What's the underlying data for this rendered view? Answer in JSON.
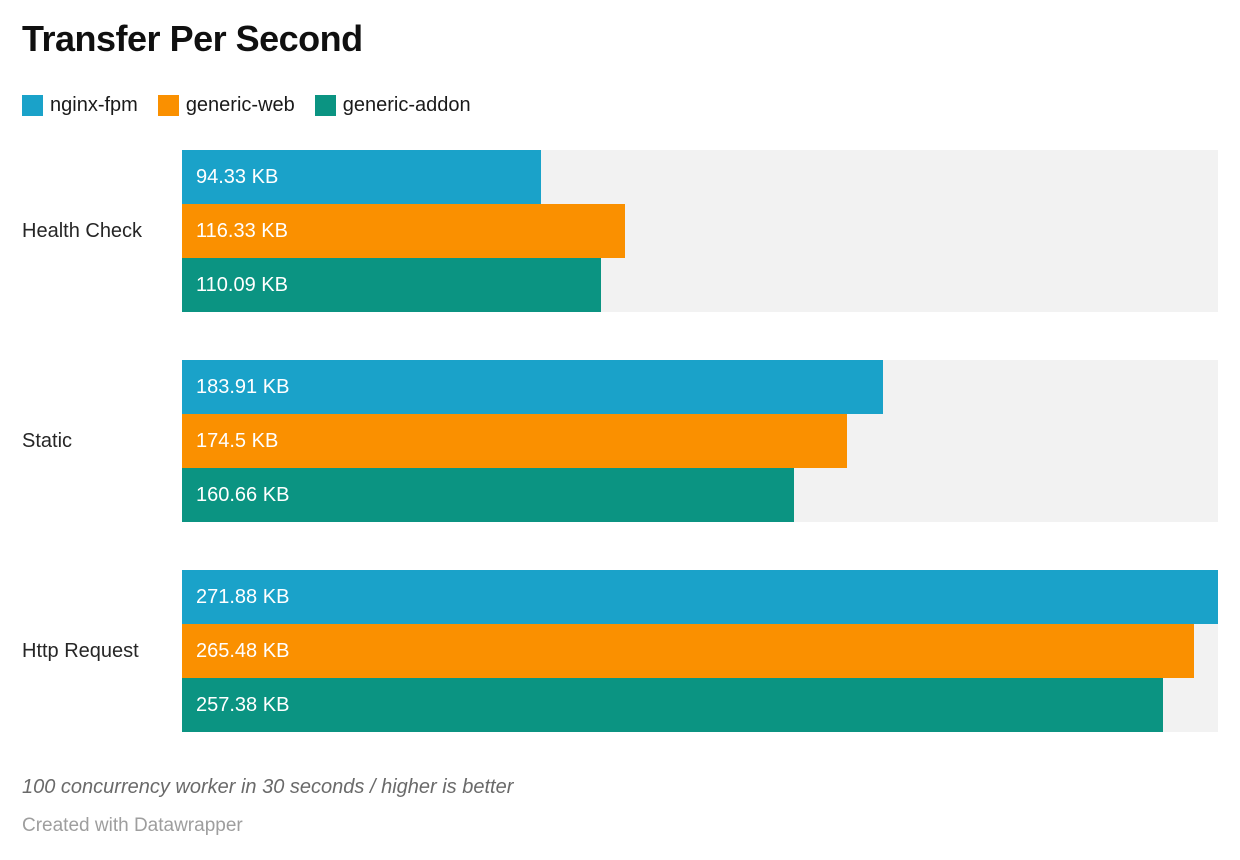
{
  "title": "Transfer Per Second",
  "legend": {
    "items": [
      {
        "label": "nginx-fpm",
        "color": "#1aa2c9"
      },
      {
        "label": "generic-web",
        "color": "#fa9000"
      },
      {
        "label": "generic-addon",
        "color": "#0b9482"
      }
    ]
  },
  "chart_data": {
    "type": "bar",
    "orientation": "horizontal",
    "title": "Transfer Per Second",
    "categories": [
      "Health Check",
      "Static",
      "Http Request"
    ],
    "series": [
      {
        "name": "nginx-fpm",
        "color": "#1aa2c9",
        "values": [
          94.33,
          183.91,
          271.88
        ],
        "labels": [
          "94.33 KB",
          "183.91 KB",
          "271.88 KB"
        ]
      },
      {
        "name": "generic-web",
        "color": "#fa9000",
        "values": [
          116.33,
          174.5,
          265.48
        ],
        "labels": [
          "116.33 KB",
          "174.5 KB",
          "265.48 KB"
        ]
      },
      {
        "name": "generic-addon",
        "color": "#0b9482",
        "values": [
          110.09,
          160.66,
          257.38
        ],
        "labels": [
          "110.09 KB",
          "160.66 KB",
          "257.38 KB"
        ]
      }
    ],
    "unit": "KB",
    "xlim": [
      0,
      271.88
    ],
    "track_color": "#f2f2f2",
    "grid": false,
    "legend_position": "top",
    "value_labels": "inside-start"
  },
  "footer": {
    "note": "100 concurrency worker in 30 seconds / higher is better",
    "attribution": "Created with Datawrapper"
  }
}
